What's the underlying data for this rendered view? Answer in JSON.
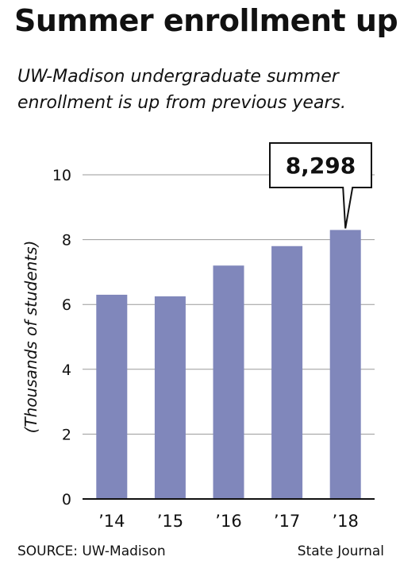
{
  "headline": "Summer enrollment up",
  "subtitle": "UW-Madison undergraduate summer enrollment is up from previous years.",
  "source": "SOURCE: UW-Madison",
  "credit": "State Journal",
  "colors": {
    "bar": "#8087bb",
    "grid": "#9a9a9a",
    "axis": "#111111",
    "text": "#111111"
  },
  "chart_data": {
    "type": "bar",
    "title": "",
    "xlabel": "",
    "ylabel": "(Thousands of students)",
    "categories": [
      "’14",
      "’15",
      "’16",
      "’17",
      "’18"
    ],
    "values": [
      6.3,
      6.25,
      7.2,
      7.8,
      8.298
    ],
    "ylim": [
      0,
      10
    ],
    "yticks": [
      0,
      2,
      4,
      6,
      8,
      10
    ],
    "grid": true,
    "annotations": [
      {
        "category": "’18",
        "text": "8,298"
      }
    ]
  }
}
